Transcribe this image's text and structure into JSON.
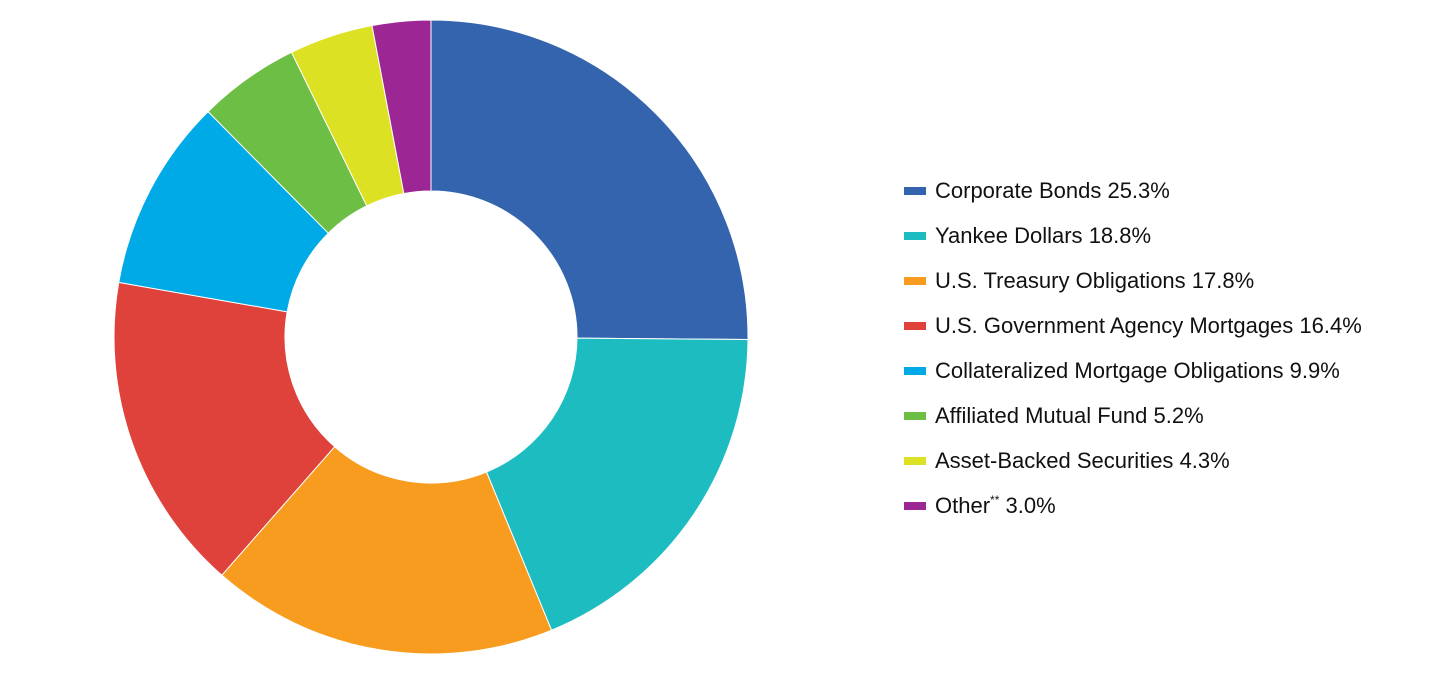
{
  "chart_data": {
    "type": "pie",
    "donut": true,
    "title": "",
    "legend_position": "right",
    "series": [
      {
        "name": "Corporate Bonds",
        "value": 25.3,
        "display": "25.3%",
        "color": "#3564AE"
      },
      {
        "name": "Yankee Dollars",
        "value": 18.8,
        "display": "18.8%",
        "color": "#1CBCC1"
      },
      {
        "name": "U.S. Treasury Obligations",
        "value": 17.8,
        "display": "17.8%",
        "color": "#F89C1F"
      },
      {
        "name": "U.S. Government Agency Mortgages",
        "value": 16.4,
        "display": "16.4%",
        "color": "#DE423B"
      },
      {
        "name": "Collateralized Mortgage Obligations",
        "value": 9.9,
        "display": "9.9%",
        "color": "#00AAE6"
      },
      {
        "name": "Affiliated Mutual Fund",
        "value": 5.2,
        "display": "5.2%",
        "color": "#6DBE45"
      },
      {
        "name": "Asset-Backed Securities",
        "value": 4.3,
        "display": "4.3%",
        "color": "#DDE124"
      },
      {
        "name": "Other",
        "superscript": "**",
        "value": 3.0,
        "display": "3.0%",
        "color": "#9C2693"
      }
    ]
  }
}
